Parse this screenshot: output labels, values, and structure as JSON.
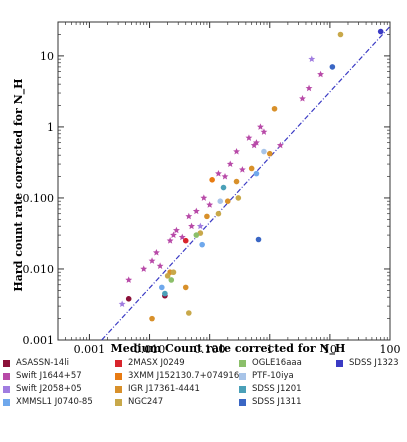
{
  "chart_data": {
    "type": "scatter",
    "xlabel": "Medium Count rate corrected for N_H",
    "ylabel": "Hard count rate corrected for N_H",
    "xscale": "log",
    "yscale": "log",
    "xlim": [
      0.0003,
      100
    ],
    "ylim": [
      0.001,
      30
    ],
    "x_ticks": [
      {
        "v": 0.001,
        "label": "0.001"
      },
      {
        "v": 0.01,
        "label": "0.010"
      },
      {
        "v": 0.1,
        "label": "0.100"
      },
      {
        "v": 1,
        "label": "1"
      },
      {
        "v": 10,
        "label": "10"
      },
      {
        "v": 100,
        "label": "100"
      }
    ],
    "y_ticks": [
      {
        "v": 0.001,
        "label": "0.001"
      },
      {
        "v": 0.01,
        "label": "0.010"
      },
      {
        "v": 0.1,
        "label": "0.100"
      },
      {
        "v": 1,
        "label": "1"
      },
      {
        "v": 10,
        "label": "10"
      }
    ],
    "fit_line": {
      "x": [
        0.0016,
        100
      ],
      "y": [
        0.001,
        26
      ]
    },
    "series": [
      {
        "name": "ASASSN-14li",
        "color": "#8b1038",
        "marker": "circle",
        "x": [
          0.0045,
          0.018
        ],
        "y": [
          0.0038,
          0.0042
        ]
      },
      {
        "name": "Swift J1644+57",
        "color": "#b84aa8",
        "marker": "star",
        "x": [
          0.0045,
          0.008,
          0.011,
          0.013,
          0.015,
          0.022,
          0.025,
          0.028,
          0.035,
          0.045,
          0.05,
          0.06,
          0.08,
          0.1,
          0.14,
          0.18,
          0.22,
          0.28,
          0.35,
          0.45,
          0.55,
          0.6,
          0.7,
          0.8,
          1.5,
          3.5,
          4.5,
          7
        ],
        "y": [
          0.007,
          0.01,
          0.013,
          0.017,
          0.011,
          0.025,
          0.03,
          0.035,
          0.028,
          0.055,
          0.04,
          0.065,
          0.1,
          0.08,
          0.22,
          0.2,
          0.3,
          0.45,
          0.25,
          0.7,
          0.55,
          0.6,
          1.0,
          0.85,
          0.55,
          2.5,
          3.5,
          5.5
        ]
      },
      {
        "name": "Swift J2058+05",
        "color": "#a07ce0",
        "marker": "star",
        "x": [
          0.0035,
          0.07,
          5
        ],
        "y": [
          0.0032,
          0.04,
          9
        ]
      },
      {
        "name": "XMMSL1 J0740-85",
        "color": "#6fa8ec",
        "marker": "circle",
        "x": [
          0.016,
          0.075,
          0.6
        ],
        "y": [
          0.0055,
          0.022,
          0.22
        ]
      },
      {
        "name": "2MASX J0249",
        "color": "#d8242c",
        "marker": "circle",
        "x": [
          0.04
        ],
        "y": [
          0.025
        ]
      },
      {
        "name": "3XMM J152130.7+074916",
        "color": "#e87b12",
        "marker": "circle",
        "x": [
          0.11
        ],
        "y": [
          0.18
        ]
      },
      {
        "name": "IGR J17361-4441",
        "color": "#d8902a",
        "marker": "circle",
        "x": [
          0.011,
          0.022,
          0.04,
          0.09,
          0.2,
          0.28,
          0.5,
          1.0,
          1.2
        ],
        "y": [
          0.002,
          0.009,
          0.0055,
          0.055,
          0.09,
          0.17,
          0.26,
          0.42,
          1.8
        ]
      },
      {
        "name": "NGC247",
        "color": "#c8a84a",
        "marker": "circle",
        "x": [
          0.02,
          0.025,
          0.045,
          0.07,
          0.14,
          0.3,
          15
        ],
        "y": [
          0.008,
          0.009,
          0.0024,
          0.032,
          0.06,
          0.1,
          20
        ]
      },
      {
        "name": "OGLE16aaa",
        "color": "#8bbf6a",
        "marker": "circle",
        "x": [
          0.023,
          0.06
        ],
        "y": [
          0.007,
          0.03
        ]
      },
      {
        "name": "PTF-10iya",
        "color": "#a8c4e8",
        "marker": "circle",
        "x": [
          0.15,
          0.8
        ],
        "y": [
          0.09,
          0.45
        ]
      },
      {
        "name": "SDSS J1201",
        "color": "#4aa0b8",
        "marker": "circle",
        "x": [
          0.018,
          0.17
        ],
        "y": [
          0.0045,
          0.14
        ]
      },
      {
        "name": "SDSS J1311",
        "color": "#3a66c4",
        "marker": "circle",
        "x": [
          0.65,
          11
        ],
        "y": [
          0.026,
          7
        ]
      },
      {
        "name": "SDSS J1323",
        "color": "#3a3ac4",
        "marker": "circle",
        "x": [
          70
        ],
        "y": [
          22
        ]
      }
    ]
  },
  "legend_layout": [
    [
      "ASASSN-14li",
      "2MASX J0249",
      "OGLE16aaa",
      "SDSS J1323"
    ],
    [
      "Swift J1644+57",
      "3XMM J152130.7+074916",
      "PTF-10iya"
    ],
    [
      "Swift J2058+05",
      "IGR J17361-4441",
      "SDSS J1201"
    ],
    [
      "XMMSL1 J0740-85",
      "NGC247",
      "SDSS J1311"
    ]
  ]
}
